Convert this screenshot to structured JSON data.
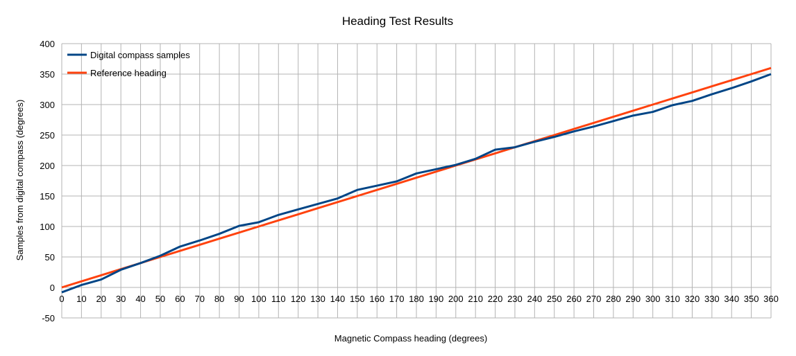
{
  "chart_data": {
    "type": "line",
    "title": "Heading Test Results",
    "xlabel": "Magnetic Compass heading (degrees)",
    "ylabel": "Samples from digital compass (degrees)",
    "xlim": [
      0,
      360
    ],
    "ylim": [
      -50,
      400
    ],
    "x": [
      0,
      10,
      20,
      30,
      40,
      50,
      60,
      70,
      80,
      90,
      100,
      110,
      120,
      130,
      140,
      150,
      160,
      170,
      180,
      190,
      200,
      210,
      220,
      230,
      240,
      250,
      260,
      270,
      280,
      290,
      300,
      310,
      320,
      330,
      340,
      350,
      360
    ],
    "x_ticks": [
      0,
      10,
      20,
      30,
      40,
      50,
      60,
      70,
      80,
      90,
      100,
      110,
      120,
      130,
      140,
      150,
      160,
      170,
      180,
      190,
      200,
      210,
      220,
      230,
      240,
      250,
      260,
      270,
      280,
      290,
      300,
      310,
      320,
      330,
      340,
      350,
      360
    ],
    "y_ticks": [
      -50,
      0,
      50,
      100,
      150,
      200,
      250,
      300,
      350,
      400
    ],
    "grid": true,
    "legend_position": "top-left",
    "series": [
      {
        "name": "Digital compass samples",
        "color": "#004586",
        "values": [
          -8,
          4,
          13,
          29,
          40,
          52,
          67,
          77,
          88,
          101,
          107,
          119,
          128,
          137,
          146,
          160,
          167,
          174,
          187,
          194,
          201,
          211,
          226,
          230,
          239,
          247,
          256,
          264,
          273,
          282,
          288,
          299,
          306,
          317,
          327,
          338,
          350
        ]
      },
      {
        "name": "Reference heading",
        "color": "#ff420e",
        "values": [
          0,
          10,
          20,
          30,
          40,
          50,
          60,
          70,
          80,
          90,
          100,
          110,
          120,
          130,
          140,
          150,
          160,
          170,
          180,
          190,
          200,
          210,
          220,
          230,
          240,
          250,
          260,
          270,
          280,
          290,
          300,
          310,
          320,
          330,
          340,
          350,
          360
        ]
      }
    ]
  }
}
